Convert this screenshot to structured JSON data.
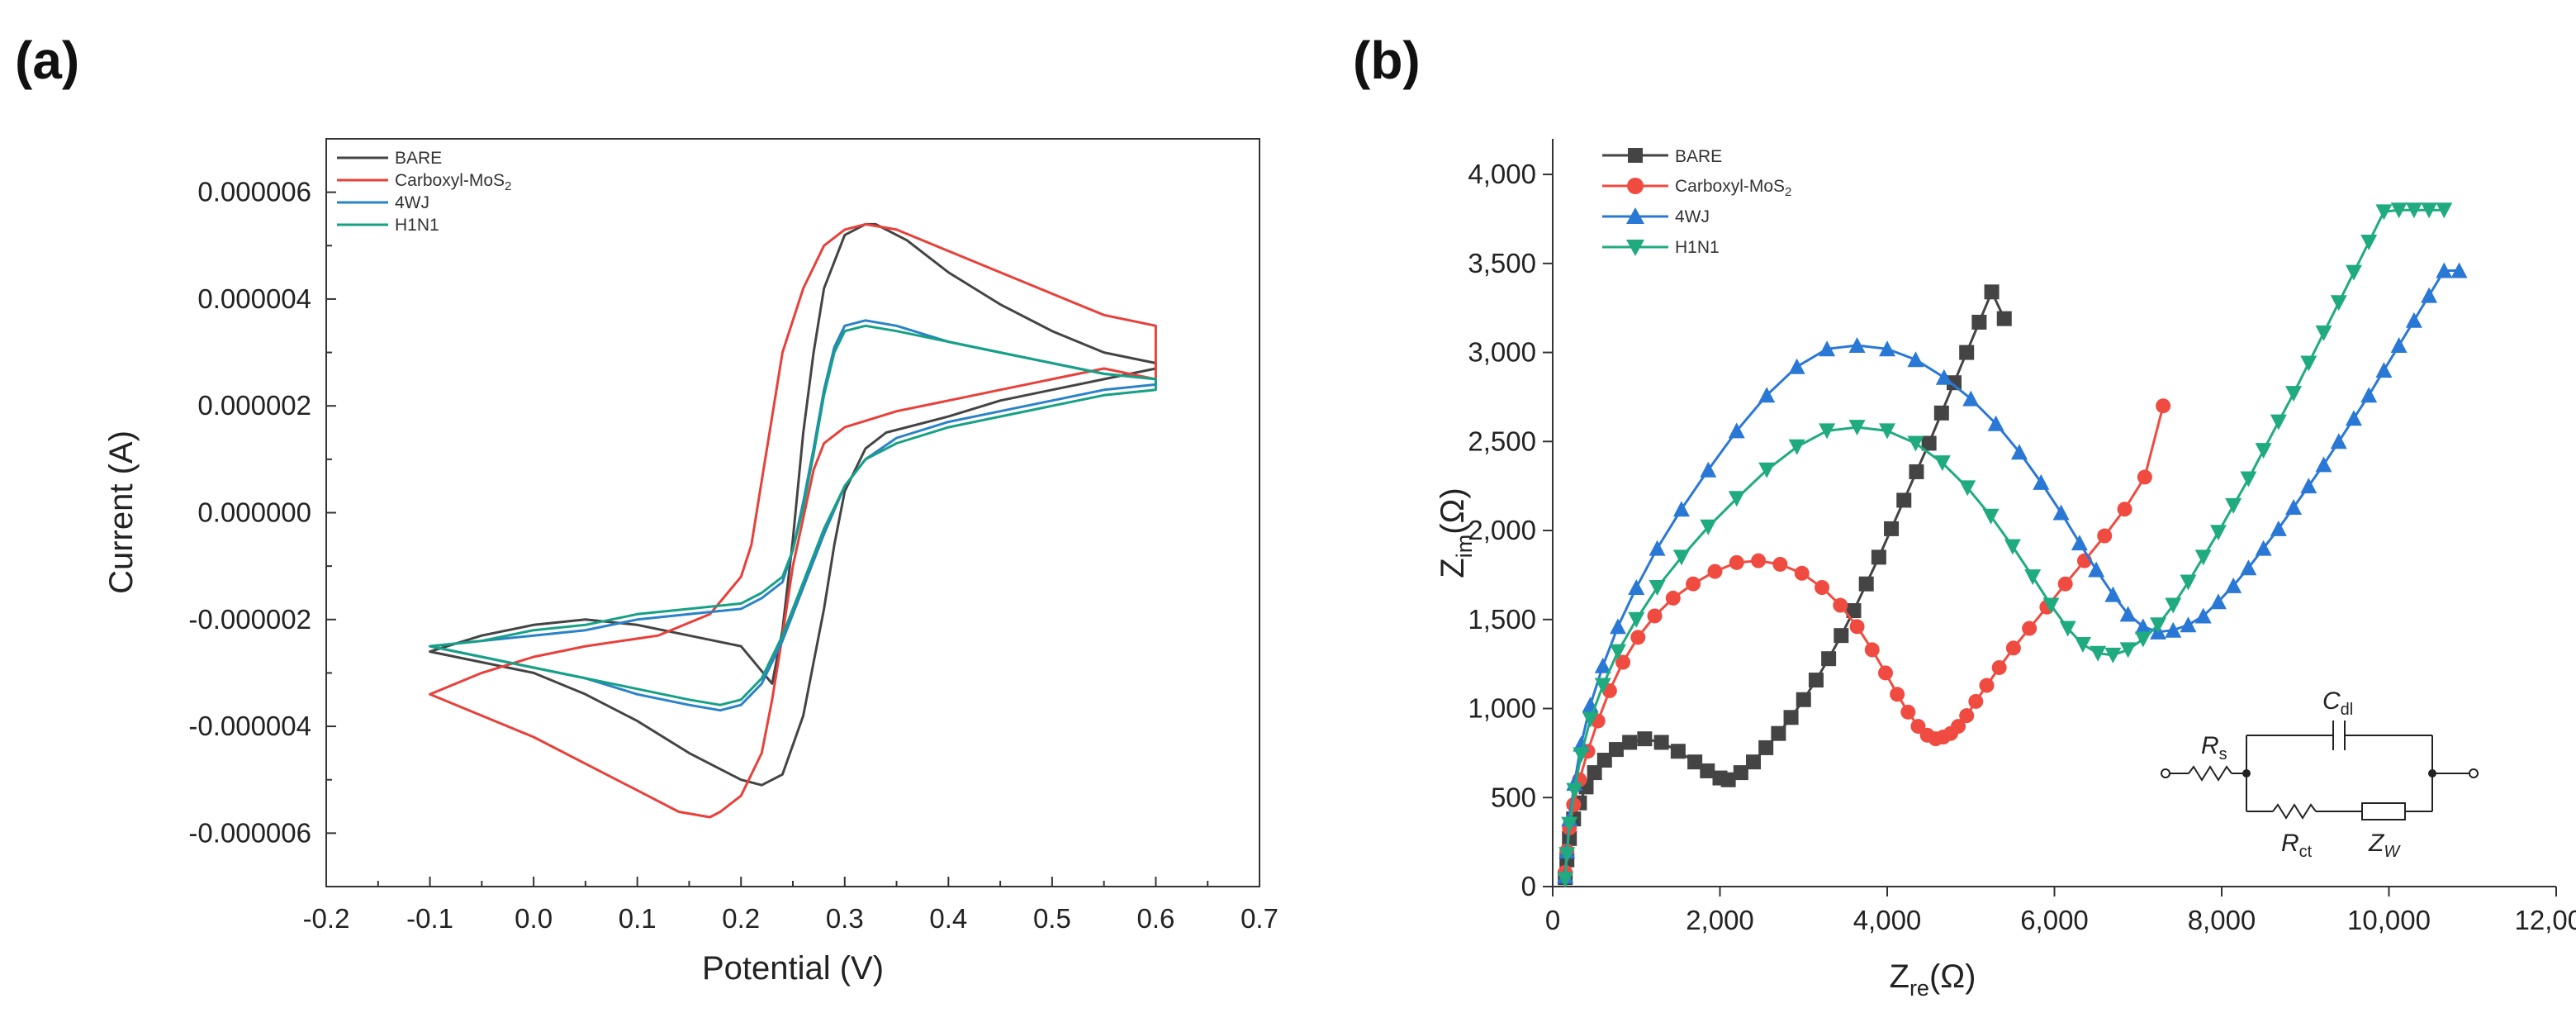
{
  "chart_data": [
    {
      "panel": "(a)",
      "type": "line",
      "title": "",
      "xlabel": "Potential (V)",
      "ylabel": "Current (A)",
      "xlim": [
        -0.2,
        0.7
      ],
      "ylim": [
        -7e-06,
        7e-06
      ],
      "xticks": [
        "-0.2",
        "-0.1",
        "0.0",
        "0.1",
        "0.2",
        "0.3",
        "0.4",
        "0.5",
        "0.6",
        "0.7"
      ],
      "yticks": [
        "0.000006",
        "0.000004",
        "0.000002",
        "0.000000",
        "-0.000002",
        "-0.000004",
        "-0.000006"
      ],
      "grid": false,
      "legend": "top-left",
      "series": [
        {
          "name": "BARE",
          "color": "#444444",
          "x": [
            0.6,
            0.55,
            0.5,
            0.45,
            0.4,
            0.36,
            0.33,
            0.32,
            0.3,
            0.28,
            0.27,
            0.26,
            0.25,
            0.24,
            0.23,
            0.2,
            0.15,
            0.1,
            0.05,
            0.0,
            -0.05,
            -0.1,
            -0.05,
            0.0,
            0.05,
            0.1,
            0.15,
            0.18,
            0.2,
            0.22,
            0.24,
            0.26,
            0.27,
            0.28,
            0.29,
            0.3,
            0.32,
            0.34,
            0.4,
            0.45,
            0.5,
            0.55,
            0.6
          ],
          "values": [
            2.8e-06,
            3e-06,
            3.4e-06,
            3.9e-06,
            4.5e-06,
            5.1e-06,
            5.4e-06,
            5.4e-06,
            5.2e-06,
            4.2e-06,
            3e-06,
            1.5e-06,
            -5e-07,
            -2.2e-06,
            -3.2e-06,
            -2.5e-06,
            -2.3e-06,
            -2.1e-06,
            -2e-06,
            -2.1e-06,
            -2.3e-06,
            -2.6e-06,
            -2.8e-06,
            -3e-06,
            -3.4e-06,
            -3.9e-06,
            -4.5e-06,
            -4.8e-06,
            -5e-06,
            -5.1e-06,
            -4.9e-06,
            -3.8e-06,
            -2.8e-06,
            -1.8e-06,
            -6e-07,
            4e-07,
            1.2e-06,
            1.5e-06,
            1.8e-06,
            2.1e-06,
            2.3e-06,
            2.5e-06,
            2.7e-06
          ]
        },
        {
          "name": "Carboxyl-MoS₂",
          "color": "#e8403a",
          "x": [
            0.6,
            0.55,
            0.5,
            0.45,
            0.4,
            0.35,
            0.32,
            0.3,
            0.28,
            0.26,
            0.24,
            0.23,
            0.22,
            0.21,
            0.2,
            0.17,
            0.12,
            0.05,
            0.0,
            -0.05,
            -0.1,
            -0.05,
            0.0,
            0.05,
            0.1,
            0.14,
            0.17,
            0.18,
            0.2,
            0.22,
            0.23,
            0.24,
            0.25,
            0.26,
            0.27,
            0.28,
            0.3,
            0.35,
            0.4,
            0.45,
            0.5,
            0.55,
            0.6
          ],
          "values": [
            3.5e-06,
            3.7e-06,
            4.1e-06,
            4.5e-06,
            4.9e-06,
            5.3e-06,
            5.4e-06,
            5.3e-06,
            5e-06,
            4.2e-06,
            3e-06,
            1.8e-06,
            6e-07,
            -6e-07,
            -1.2e-06,
            -1.9e-06,
            -2.3e-06,
            -2.5e-06,
            -2.7e-06,
            -3e-06,
            -3.4e-06,
            -3.8e-06,
            -4.2e-06,
            -4.7e-06,
            -5.2e-06,
            -5.6e-06,
            -5.7e-06,
            -5.6e-06,
            -5.3e-06,
            -4.5e-06,
            -3.5e-06,
            -2.3e-06,
            -1e-06,
            -1e-07,
            8e-07,
            1.3e-06,
            1.6e-06,
            1.9e-06,
            2.1e-06,
            2.3e-06,
            2.5e-06,
            2.7e-06,
            2.5e-06
          ]
        },
        {
          "name": "4WJ",
          "color": "#2a82c8",
          "x": [
            0.6,
            0.55,
            0.5,
            0.45,
            0.4,
            0.35,
            0.32,
            0.3,
            0.29,
            0.28,
            0.27,
            0.26,
            0.25,
            0.24,
            0.22,
            0.2,
            0.15,
            0.1,
            0.05,
            0.0,
            -0.05,
            -0.1,
            -0.05,
            0.0,
            0.05,
            0.1,
            0.15,
            0.18,
            0.2,
            0.22,
            0.24,
            0.26,
            0.28,
            0.3,
            0.32,
            0.35,
            0.4,
            0.45,
            0.5,
            0.55,
            0.6
          ],
          "values": [
            2.5e-06,
            2.6e-06,
            2.8e-06,
            3e-06,
            3.2e-06,
            3.5e-06,
            3.6e-06,
            3.5e-06,
            3.1e-06,
            2.3e-06,
            1.2e-06,
            2e-07,
            -7e-07,
            -1.3e-06,
            -1.6e-06,
            -1.8e-06,
            -1.9e-06,
            -2e-06,
            -2.2e-06,
            -2.3e-06,
            -2.4e-06,
            -2.5e-06,
            -2.7e-06,
            -2.9e-06,
            -3.1e-06,
            -3.4e-06,
            -3.6e-06,
            -3.7e-06,
            -3.6e-06,
            -3.2e-06,
            -2.4e-06,
            -1.4e-06,
            -4e-07,
            5e-07,
            1e-06,
            1.4e-06,
            1.7e-06,
            1.9e-06,
            2.1e-06,
            2.3e-06,
            2.4e-06
          ]
        },
        {
          "name": "H1N1",
          "color": "#16a085",
          "x": [
            0.6,
            0.55,
            0.5,
            0.45,
            0.4,
            0.35,
            0.32,
            0.3,
            0.29,
            0.28,
            0.27,
            0.26,
            0.25,
            0.24,
            0.22,
            0.2,
            0.15,
            0.1,
            0.05,
            0.0,
            -0.05,
            -0.1,
            -0.05,
            0.0,
            0.05,
            0.1,
            0.15,
            0.18,
            0.2,
            0.22,
            0.24,
            0.26,
            0.28,
            0.3,
            0.32,
            0.35,
            0.4,
            0.45,
            0.5,
            0.55,
            0.6
          ],
          "values": [
            2.5e-06,
            2.6e-06,
            2.8e-06,
            3e-06,
            3.2e-06,
            3.4e-06,
            3.5e-06,
            3.4e-06,
            3e-06,
            2.2e-06,
            1.1e-06,
            1e-07,
            -7e-07,
            -1.2e-06,
            -1.5e-06,
            -1.7e-06,
            -1.8e-06,
            -1.9e-06,
            -2.1e-06,
            -2.2e-06,
            -2.4e-06,
            -2.5e-06,
            -2.7e-06,
            -2.9e-06,
            -3.1e-06,
            -3.3e-06,
            -3.5e-06,
            -3.6e-06,
            -3.5e-06,
            -3.1e-06,
            -2.3e-06,
            -1.3e-06,
            -3e-07,
            5e-07,
            1e-06,
            1.3e-06,
            1.6e-06,
            1.8e-06,
            2e-06,
            2.2e-06,
            2.3e-06
          ]
        }
      ]
    },
    {
      "panel": "(b)",
      "type": "scatter",
      "title": "",
      "xlabel_main": "Z",
      "xlabel_sub": "re",
      "xlabel_unit": "(Ω)",
      "ylabel_main": "Z",
      "ylabel_sub": "im",
      "ylabel_unit": "(Ω)",
      "xlim": [
        0,
        12000
      ],
      "ylim": [
        0,
        4200
      ],
      "xticks": [
        "0",
        "2,000",
        "4,000",
        "6,000",
        "8,000",
        "10,000",
        "12,000"
      ],
      "yticks": [
        "0",
        "500",
        "1,000",
        "1,500",
        "2,000",
        "2,500",
        "3,000",
        "3,500",
        "4,000"
      ],
      "grid": false,
      "legend": "top-left",
      "series": [
        {
          "name": "BARE",
          "color": "#444444",
          "marker": "square",
          "x": [
            150,
            170,
            200,
            250,
            320,
            400,
            500,
            620,
            760,
            920,
            1100,
            1300,
            1500,
            1700,
            1850,
            2000,
            2100,
            2250,
            2400,
            2550,
            2700,
            2850,
            3000,
            3150,
            3300,
            3450,
            3600,
            3750,
            3900,
            4050,
            4200,
            4350,
            4500,
            4650,
            4800,
            4950,
            5100,
            5250,
            5400
          ],
          "values": [
            50,
            150,
            270,
            380,
            470,
            560,
            640,
            710,
            770,
            810,
            830,
            810,
            760,
            700,
            650,
            610,
            600,
            640,
            700,
            780,
            860,
            950,
            1050,
            1160,
            1280,
            1410,
            1550,
            1700,
            1850,
            2010,
            2170,
            2330,
            2490,
            2660,
            2830,
            3000,
            3170,
            3340,
            3190
          ]
        },
        {
          "name": "Carboxyl-MoS₂",
          "color": "#f04b40",
          "marker": "circle",
          "x": [
            150,
            170,
            200,
            250,
            320,
            420,
            540,
            680,
            840,
            1020,
            1220,
            1440,
            1680,
            1940,
            2200,
            2460,
            2720,
            2980,
            3220,
            3440,
            3640,
            3820,
            3980,
            4120,
            4250,
            4370,
            4480,
            4580,
            4670,
            4760,
            4850,
            4950,
            5060,
            5190,
            5340,
            5510,
            5700,
            5910,
            6130,
            6360,
            6600,
            6840,
            7080,
            7300
          ],
          "values": [
            80,
            200,
            330,
            460,
            600,
            760,
            930,
            1100,
            1260,
            1400,
            1520,
            1620,
            1700,
            1770,
            1820,
            1830,
            1810,
            1760,
            1680,
            1580,
            1460,
            1330,
            1200,
            1080,
            980,
            900,
            850,
            830,
            840,
            860,
            900,
            960,
            1040,
            1130,
            1230,
            1340,
            1450,
            1570,
            1700,
            1830,
            1970,
            2120,
            2300,
            2700
          ]
        },
        {
          "name": "4WJ",
          "color": "#2a78d6",
          "marker": "triangle-up",
          "x": [
            150,
            170,
            200,
            260,
            340,
            450,
            600,
            780,
            1000,
            1250,
            1540,
            1860,
            2200,
            2560,
            2920,
            3280,
            3640,
            4000,
            4340,
            4680,
            5000,
            5300,
            5580,
            5840,
            6080,
            6300,
            6500,
            6700,
            6880,
            7060,
            7240,
            7420,
            7600,
            7780,
            7960,
            8140,
            8320,
            8500,
            8680,
            8860,
            9040,
            9220,
            9400,
            9580,
            9760,
            9940,
            10120,
            10300,
            10480,
            10660,
            10840
          ],
          "values": [
            60,
            200,
            380,
            580,
            800,
            1020,
            1240,
            1460,
            1680,
            1900,
            2120,
            2340,
            2560,
            2760,
            2920,
            3020,
            3040,
            3020,
            2960,
            2860,
            2740,
            2600,
            2440,
            2270,
            2100,
            1930,
            1780,
            1640,
            1530,
            1460,
            1430,
            1440,
            1470,
            1520,
            1600,
            1690,
            1790,
            1900,
            2010,
            2130,
            2250,
            2370,
            2500,
            2630,
            2760,
            2900,
            3040,
            3180,
            3320,
            3460,
            3460
          ]
        },
        {
          "name": "H1N1",
          "color": "#1fab7f",
          "marker": "triangle-down",
          "x": [
            150,
            170,
            200,
            260,
            340,
            450,
            600,
            780,
            1000,
            1250,
            1540,
            1860,
            2200,
            2560,
            2920,
            3280,
            3640,
            4000,
            4340,
            4660,
            4960,
            5240,
            5500,
            5740,
            5960,
            6160,
            6340,
            6520,
            6700,
            6880,
            7060,
            7240,
            7420,
            7600,
            7780,
            7960,
            8140,
            8320,
            8500,
            8680,
            8860,
            9040,
            9220,
            9400,
            9580,
            9760,
            9940,
            10120,
            10300,
            10480,
            10660
          ],
          "values": [
            40,
            180,
            350,
            540,
            740,
            940,
            1130,
            1320,
            1500,
            1680,
            1850,
            2020,
            2180,
            2340,
            2470,
            2560,
            2580,
            2560,
            2490,
            2380,
            2240,
            2080,
            1910,
            1740,
            1580,
            1450,
            1360,
            1310,
            1300,
            1330,
            1390,
            1470,
            1580,
            1710,
            1850,
            1990,
            2140,
            2290,
            2450,
            2610,
            2770,
            2940,
            3110,
            3280,
            3450,
            3620,
            3790,
            3800,
            3800,
            3800,
            3800
          ]
        }
      ],
      "circuit": {
        "rs": "R",
        "rs_sub": "s",
        "cdl": "C",
        "cdl_sub": "dl",
        "rct": "R",
        "rct_sub": "ct",
        "zw": "Z",
        "zw_sub": "W"
      }
    }
  ],
  "legend_a": [
    "BARE",
    "Carboxyl-MoS",
    "4WJ",
    "H1N1"
  ],
  "legend_a_sub": "2",
  "legend_b": [
    "BARE",
    "Carboxyl-MoS",
    "4WJ",
    "H1N1"
  ],
  "legend_b_sub": "2"
}
